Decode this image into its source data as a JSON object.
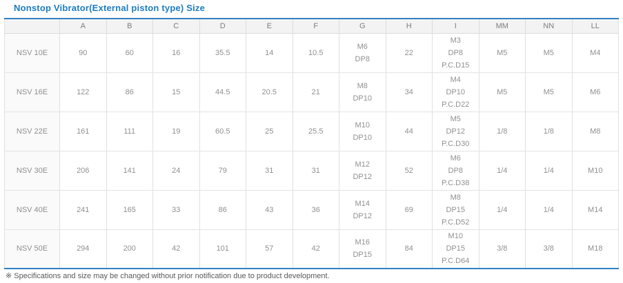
{
  "page": {
    "title": "Nonstop Vibrator(External piston type) Size",
    "footnote": "※ Specifications and size may be changed without prior notification due to product development."
  },
  "colors": {
    "title_blue": "#1b7cc2",
    "table_accent_border": "#2f80c3",
    "header_bg": "#f3f3f3",
    "row_label_bg": "#fafafa",
    "cell_border": "#e0e0e0",
    "value_text": "#909090",
    "footnote_text": "#595959"
  },
  "chart_data": {
    "type": "table",
    "columns": [
      "",
      "A",
      "B",
      "C",
      "D",
      "E",
      "F",
      "G",
      "H",
      "I",
      "MM",
      "NN",
      "LL"
    ],
    "rows": [
      {
        "label": "NSV 10E",
        "cells": [
          [
            "90"
          ],
          [
            "60"
          ],
          [
            "16"
          ],
          [
            "35.5"
          ],
          [
            "14"
          ],
          [
            "10.5"
          ],
          [
            "M6",
            "DP8"
          ],
          [
            "22"
          ],
          [
            "M3",
            "DP8",
            "P.C.D15"
          ],
          [
            "M5"
          ],
          [
            "M5"
          ],
          [
            "M4"
          ]
        ]
      },
      {
        "label": "NSV 16E",
        "cells": [
          [
            "122"
          ],
          [
            "86"
          ],
          [
            "15"
          ],
          [
            "44.5"
          ],
          [
            "20.5"
          ],
          [
            "21"
          ],
          [
            "M8",
            "DP10"
          ],
          [
            "34"
          ],
          [
            "M4",
            "DP10",
            "P.C.D22"
          ],
          [
            "M5"
          ],
          [
            "M5"
          ],
          [
            "M6"
          ]
        ]
      },
      {
        "label": "NSV 22E",
        "cells": [
          [
            "161"
          ],
          [
            "111"
          ],
          [
            "19"
          ],
          [
            "60.5"
          ],
          [
            "25"
          ],
          [
            "25.5"
          ],
          [
            "M10",
            "DP10"
          ],
          [
            "44"
          ],
          [
            "M5",
            "DP12",
            "P.C.D30"
          ],
          [
            "1/8"
          ],
          [
            "1/8"
          ],
          [
            "M8"
          ]
        ]
      },
      {
        "label": "NSV 30E",
        "cells": [
          [
            "206"
          ],
          [
            "141"
          ],
          [
            "24"
          ],
          [
            "79"
          ],
          [
            "31"
          ],
          [
            "31"
          ],
          [
            "M12",
            "DP12"
          ],
          [
            "52"
          ],
          [
            "M6",
            "DP8",
            "P.C.D38"
          ],
          [
            "1/4"
          ],
          [
            "1/4"
          ],
          [
            "M10"
          ]
        ]
      },
      {
        "label": "NSV 40E",
        "cells": [
          [
            "241"
          ],
          [
            "165"
          ],
          [
            "33"
          ],
          [
            "86"
          ],
          [
            "43"
          ],
          [
            "36"
          ],
          [
            "M14",
            "DP12"
          ],
          [
            "69"
          ],
          [
            "M8",
            "DP15",
            "P.C.D52"
          ],
          [
            "1/4"
          ],
          [
            "1/4"
          ],
          [
            "M14"
          ]
        ]
      },
      {
        "label": "NSV 50E",
        "cells": [
          [
            "294"
          ],
          [
            "200"
          ],
          [
            "42"
          ],
          [
            "101"
          ],
          [
            "57"
          ],
          [
            "42"
          ],
          [
            "M16",
            "DP15"
          ],
          [
            "84"
          ],
          [
            "M10",
            "DP15",
            "P.C.D64"
          ],
          [
            "3/8"
          ],
          [
            "3/8"
          ],
          [
            "M18"
          ]
        ]
      }
    ]
  }
}
